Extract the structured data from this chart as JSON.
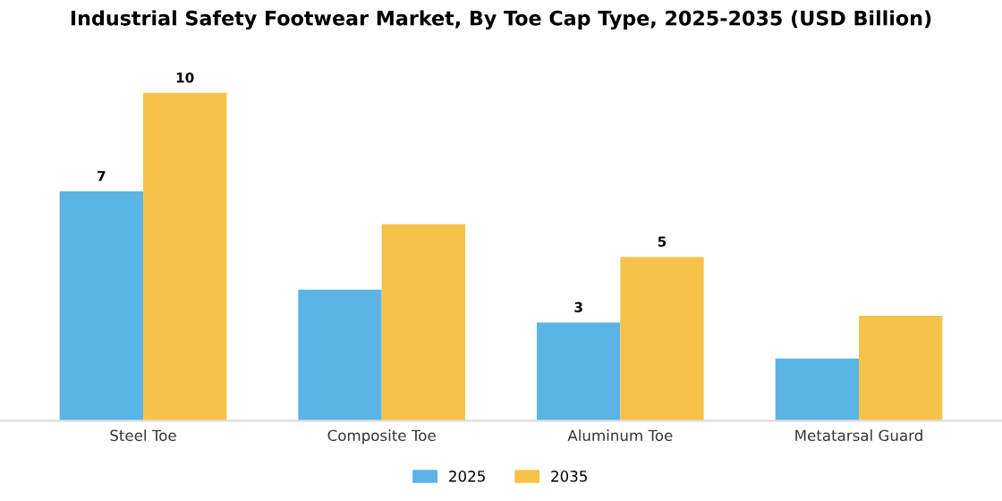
{
  "chart_data": {
    "type": "bar",
    "title": "Industrial Safety Footwear Market, By Toe Cap Type, 2025-2035 (USD Billion)",
    "categories": [
      "Steel Toe",
      "Composite Toe",
      "Aluminum Toe",
      "Metatarsal Guard"
    ],
    "series": [
      {
        "name": "2025",
        "color": "#5ab4e5",
        "values": [
          7,
          4.0,
          3,
          1.9
        ],
        "value_labels": [
          "7",
          null,
          "3",
          null
        ]
      },
      {
        "name": "2035",
        "color": "#f7c24a",
        "values": [
          10,
          6.0,
          5,
          3.2
        ],
        "value_labels": [
          "10",
          null,
          "5",
          null
        ]
      }
    ],
    "legend": "bottom",
    "grid": false
  }
}
